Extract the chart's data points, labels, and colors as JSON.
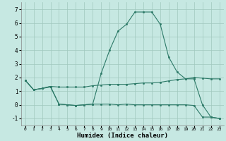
{
  "title": "",
  "xlabel": "Humidex (Indice chaleur)",
  "ylabel": "",
  "bg_color": "#c6e8e2",
  "line_color": "#2d7a68",
  "grid_color": "#a0c8be",
  "xlim": [
    -0.5,
    23.5
  ],
  "ylim": [
    -1.5,
    7.5
  ],
  "yticks": [
    -1,
    0,
    1,
    2,
    3,
    4,
    5,
    6,
    7
  ],
  "xticks": [
    0,
    1,
    2,
    3,
    4,
    5,
    6,
    7,
    8,
    9,
    10,
    11,
    12,
    13,
    14,
    15,
    16,
    17,
    18,
    19,
    20,
    21,
    22,
    23
  ],
  "line1_y": [
    1.8,
    1.1,
    1.2,
    1.3,
    0.05,
    0.0,
    -0.05,
    0.0,
    0.05,
    0.05,
    0.05,
    0.0,
    0.05,
    0.0,
    0.0,
    0.0,
    0.0,
    0.0,
    0.0,
    0.0,
    -0.05,
    -0.9,
    -0.9,
    -1.0
  ],
  "line2_y": [
    1.8,
    1.1,
    1.2,
    1.35,
    1.3,
    1.3,
    1.3,
    1.3,
    1.4,
    1.45,
    1.5,
    1.5,
    1.5,
    1.55,
    1.6,
    1.6,
    1.65,
    1.75,
    1.85,
    1.9,
    2.0,
    1.95,
    1.9,
    1.9
  ],
  "line3_y": [
    1.8,
    1.1,
    1.2,
    1.35,
    0.05,
    0.0,
    -0.05,
    0.0,
    0.05,
    2.3,
    4.0,
    5.4,
    5.9,
    6.8,
    6.8,
    6.8,
    5.9,
    3.5,
    2.4,
    1.9,
    1.9,
    0.0,
    -0.9,
    -1.0
  ]
}
